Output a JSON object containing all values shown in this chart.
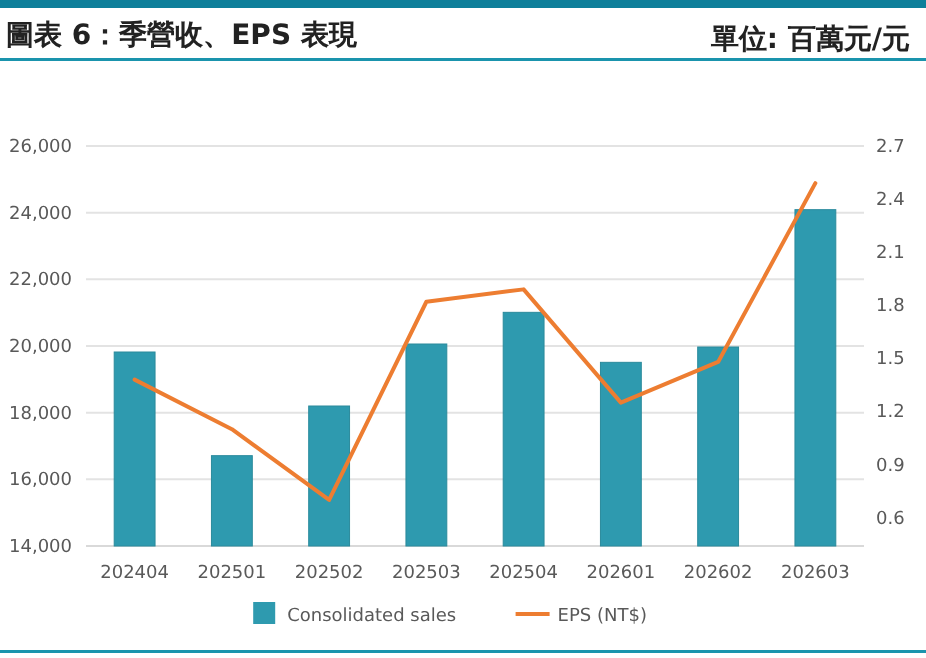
{
  "chart_data": {
    "type": "bar",
    "title": "圖表 6：季營收、EPS 表現",
    "subtitle": "單位: 百萬元/元",
    "categories": [
      "202404",
      "202501",
      "202502",
      "202503",
      "202504",
      "202601",
      "202602",
      "202603"
    ],
    "series": [
      {
        "name": "Consolidated sales",
        "color": "#2e9aaf",
        "values": [
          19820,
          16710,
          18200,
          20060,
          21010,
          19510,
          19970,
          24090
        ]
      },
      {
        "name": "EPS (NT$)",
        "type": "line",
        "axis": "y2",
        "color": "#ed7d31",
        "values": [
          1.38,
          1.1,
          0.7,
          1.82,
          1.89,
          1.25,
          1.48,
          2.49
        ]
      }
    ],
    "ylim": [
      14000,
      26000
    ],
    "yticks": [
      {
        "value": 14000,
        "label": "14,000"
      },
      {
        "value": 16000,
        "label": "16,000"
      },
      {
        "value": 18000,
        "label": "18,000"
      },
      {
        "value": 20000,
        "label": "20,000"
      },
      {
        "value": 22000,
        "label": "22,000"
      },
      {
        "value": 24000,
        "label": "24,000"
      },
      {
        "value": 26000,
        "label": "26,000"
      }
    ],
    "y2lim": [
      0.44,
      2.7
    ],
    "y2ticks": [
      0.6,
      0.9,
      1.2,
      1.5,
      1.8,
      2.1,
      2.4,
      2.7
    ],
    "grid": "y",
    "legend": "bottom",
    "marker": "none",
    "line_style": "solid"
  }
}
